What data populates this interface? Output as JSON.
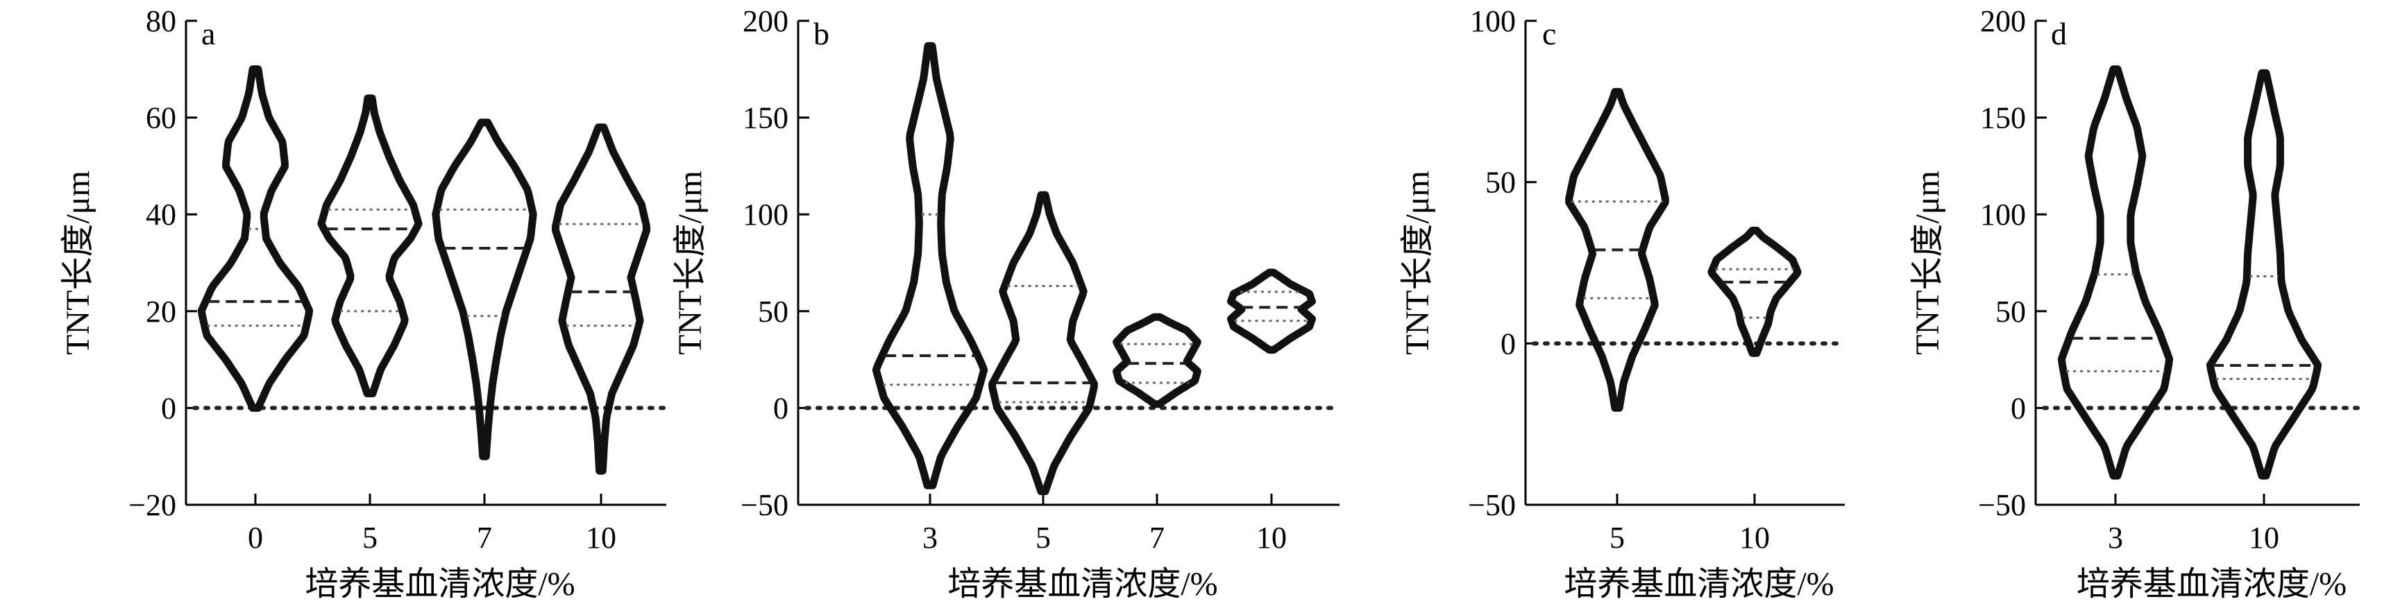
{
  "figure": {
    "y_axis_title": "TNT长度/μm",
    "x_axis_title": "培养基血清浓度/%"
  },
  "chart_data": [
    {
      "type": "violin",
      "panel_label": "a",
      "ylim": [
        -20,
        80
      ],
      "yticks": [
        "80",
        "60",
        "40",
        "20",
        "0",
        "−20"
      ],
      "ytick_values": [
        80,
        60,
        40,
        20,
        0,
        -20
      ],
      "categories": [
        "0",
        "5",
        "7",
        "10"
      ],
      "ylabel": "TNT长度/μm",
      "xlabel": "培养基血清浓度/%",
      "reference_line": 0,
      "violins": [
        {
          "category": "0",
          "min": 0,
          "max": 70,
          "q1": 17,
          "median": 22,
          "q3": 37,
          "profile": [
            [
              0,
              0.05
            ],
            [
              5,
              0.25
            ],
            [
              10,
              0.55
            ],
            [
              15,
              0.9
            ],
            [
              20,
              1.0
            ],
            [
              25,
              0.8
            ],
            [
              30,
              0.45
            ],
            [
              35,
              0.2
            ],
            [
              40,
              0.15
            ],
            [
              45,
              0.3
            ],
            [
              50,
              0.55
            ],
            [
              55,
              0.5
            ],
            [
              60,
              0.25
            ],
            [
              65,
              0.12
            ],
            [
              70,
              0.05
            ]
          ]
        },
        {
          "category": "5",
          "min": 3,
          "max": 64,
          "q1": 20,
          "median": 37,
          "q3": 41,
          "profile": [
            [
              3,
              0.05
            ],
            [
              8,
              0.2
            ],
            [
              13,
              0.45
            ],
            [
              18,
              0.65
            ],
            [
              22,
              0.55
            ],
            [
              27,
              0.35
            ],
            [
              31,
              0.45
            ],
            [
              35,
              0.75
            ],
            [
              38,
              0.9
            ],
            [
              42,
              0.8
            ],
            [
              47,
              0.55
            ],
            [
              52,
              0.35
            ],
            [
              57,
              0.18
            ],
            [
              61,
              0.08
            ],
            [
              64,
              0.04
            ]
          ]
        },
        {
          "category": "7",
          "min": -10,
          "max": 59,
          "q1": 19,
          "median": 33,
          "q3": 41,
          "profile": [
            [
              -10,
              0.03
            ],
            [
              -5,
              0.06
            ],
            [
              0,
              0.1
            ],
            [
              5,
              0.15
            ],
            [
              10,
              0.22
            ],
            [
              15,
              0.3
            ],
            [
              20,
              0.4
            ],
            [
              25,
              0.55
            ],
            [
              30,
              0.7
            ],
            [
              35,
              0.85
            ],
            [
              40,
              0.9
            ],
            [
              45,
              0.8
            ],
            [
              50,
              0.55
            ],
            [
              55,
              0.25
            ],
            [
              59,
              0.06
            ]
          ]
        },
        {
          "category": "10",
          "min": -13,
          "max": 58,
          "q1": 17,
          "median": 24,
          "q3": 38,
          "profile": [
            [
              -13,
              0.03
            ],
            [
              -7,
              0.06
            ],
            [
              -2,
              0.1
            ],
            [
              3,
              0.2
            ],
            [
              8,
              0.4
            ],
            [
              13,
              0.6
            ],
            [
              18,
              0.72
            ],
            [
              22,
              0.65
            ],
            [
              27,
              0.55
            ],
            [
              32,
              0.7
            ],
            [
              37,
              0.85
            ],
            [
              42,
              0.75
            ],
            [
              47,
              0.5
            ],
            [
              53,
              0.22
            ],
            [
              58,
              0.05
            ]
          ]
        }
      ]
    },
    {
      "type": "violin",
      "panel_label": "b",
      "ylim": [
        -50,
        200
      ],
      "yticks": [
        "200",
        "150",
        "100",
        "50",
        "0",
        "−50"
      ],
      "ytick_values": [
        200,
        150,
        100,
        50,
        0,
        -50
      ],
      "categories": [
        "3",
        "5",
        "7",
        "10"
      ],
      "ylabel": "TNT长度/μm",
      "xlabel": "培养基血清浓度/%",
      "reference_line": 0,
      "violins": [
        {
          "category": "3",
          "min": -40,
          "max": 187,
          "q1": 12,
          "median": 27,
          "q3": 100,
          "profile": [
            [
              -40,
              0.05
            ],
            [
              -25,
              0.2
            ],
            [
              -10,
              0.5
            ],
            [
              5,
              0.85
            ],
            [
              20,
              1.0
            ],
            [
              35,
              0.75
            ],
            [
              50,
              0.45
            ],
            [
              65,
              0.3
            ],
            [
              80,
              0.22
            ],
            [
              95,
              0.2
            ],
            [
              110,
              0.22
            ],
            [
              125,
              0.32
            ],
            [
              140,
              0.38
            ],
            [
              155,
              0.25
            ],
            [
              170,
              0.12
            ],
            [
              187,
              0.04
            ]
          ]
        },
        {
          "category": "5",
          "min": -43,
          "max": 110,
          "q1": 3,
          "median": 13,
          "q3": 63,
          "profile": [
            [
              -43,
              0.04
            ],
            [
              -30,
              0.2
            ],
            [
              -15,
              0.5
            ],
            [
              0,
              0.85
            ],
            [
              12,
              0.95
            ],
            [
              25,
              0.7
            ],
            [
              35,
              0.5
            ],
            [
              45,
              0.55
            ],
            [
              60,
              0.75
            ],
            [
              75,
              0.55
            ],
            [
              90,
              0.25
            ],
            [
              100,
              0.12
            ],
            [
              110,
              0.04
            ]
          ]
        },
        {
          "category": "7",
          "min": 2,
          "max": 47,
          "q1": 13,
          "median": 23,
          "q3": 33,
          "profile": [
            [
              2,
              0.04
            ],
            [
              8,
              0.35
            ],
            [
              14,
              0.7
            ],
            [
              19,
              0.75
            ],
            [
              24,
              0.55
            ],
            [
              29,
              0.65
            ],
            [
              34,
              0.75
            ],
            [
              40,
              0.55
            ],
            [
              44,
              0.25
            ],
            [
              47,
              0.05
            ]
          ]
        },
        {
          "category": "10",
          "min": 30,
          "max": 70,
          "q1": 45,
          "median": 52,
          "q3": 60,
          "profile": [
            [
              30,
              0.04
            ],
            [
              36,
              0.35
            ],
            [
              42,
              0.7
            ],
            [
              46,
              0.75
            ],
            [
              51,
              0.55
            ],
            [
              55,
              0.75
            ],
            [
              59,
              0.7
            ],
            [
              64,
              0.35
            ],
            [
              70,
              0.04
            ]
          ]
        }
      ]
    },
    {
      "type": "violin",
      "panel_label": "c",
      "ylim": [
        -50,
        100
      ],
      "yticks": [
        "100",
        "50",
        "0",
        "−50"
      ],
      "ytick_values": [
        100,
        50,
        0,
        -50
      ],
      "categories": [
        "5",
        "10"
      ],
      "ylabel": "TNT长度/μm",
      "xlabel": "培养基血清浓度/%",
      "reference_line": 0,
      "violins": [
        {
          "category": "5",
          "min": -20,
          "max": 78,
          "q1": 14,
          "median": 29,
          "q3": 44,
          "profile": [
            [
              -20,
              0.04
            ],
            [
              -12,
              0.12
            ],
            [
              -4,
              0.28
            ],
            [
              4,
              0.5
            ],
            [
              12,
              0.7
            ],
            [
              20,
              0.6
            ],
            [
              28,
              0.45
            ],
            [
              36,
              0.6
            ],
            [
              44,
              0.9
            ],
            [
              52,
              0.8
            ],
            [
              60,
              0.55
            ],
            [
              68,
              0.3
            ],
            [
              74,
              0.12
            ],
            [
              78,
              0.04
            ]
          ]
        },
        {
          "category": "10",
          "min": -3,
          "max": 35,
          "q1": 8,
          "median": 19,
          "q3": 23,
          "profile": [
            [
              -3,
              0.04
            ],
            [
              2,
              0.15
            ],
            [
              6,
              0.25
            ],
            [
              10,
              0.3
            ],
            [
              14,
              0.4
            ],
            [
              18,
              0.6
            ],
            [
              22,
              0.8
            ],
            [
              26,
              0.7
            ],
            [
              30,
              0.4
            ],
            [
              33,
              0.15
            ],
            [
              35,
              0.04
            ]
          ]
        }
      ]
    },
    {
      "type": "violin",
      "panel_label": "d",
      "ylim": [
        -50,
        200
      ],
      "yticks": [
        "200",
        "150",
        "100",
        "50",
        "0",
        "−50"
      ],
      "ytick_values": [
        200,
        150,
        100,
        50,
        0,
        -50
      ],
      "categories": [
        "3",
        "10"
      ],
      "ylabel": "TNT长度/μm",
      "xlabel": "培养基血清浓度/%",
      "reference_line": 0,
      "violins": [
        {
          "category": "3",
          "min": -35,
          "max": 175,
          "q1": 19,
          "median": 36,
          "q3": 69,
          "profile": [
            [
              -35,
              0.04
            ],
            [
              -20,
              0.2
            ],
            [
              -5,
              0.55
            ],
            [
              10,
              0.9
            ],
            [
              25,
              1.0
            ],
            [
              40,
              0.8
            ],
            [
              55,
              0.55
            ],
            [
              70,
              0.38
            ],
            [
              85,
              0.28
            ],
            [
              100,
              0.28
            ],
            [
              115,
              0.4
            ],
            [
              130,
              0.5
            ],
            [
              145,
              0.4
            ],
            [
              160,
              0.2
            ],
            [
              175,
              0.04
            ]
          ]
        },
        {
          "category": "10",
          "min": -35,
          "max": 173,
          "q1": 15,
          "median": 22,
          "q3": 68,
          "profile": [
            [
              -35,
              0.04
            ],
            [
              -20,
              0.2
            ],
            [
              -5,
              0.55
            ],
            [
              10,
              0.9
            ],
            [
              22,
              1.0
            ],
            [
              35,
              0.7
            ],
            [
              50,
              0.45
            ],
            [
              65,
              0.32
            ],
            [
              80,
              0.3
            ],
            [
              95,
              0.25
            ],
            [
              110,
              0.2
            ],
            [
              125,
              0.3
            ],
            [
              140,
              0.3
            ],
            [
              155,
              0.18
            ],
            [
              173,
              0.04
            ]
          ]
        }
      ]
    }
  ]
}
